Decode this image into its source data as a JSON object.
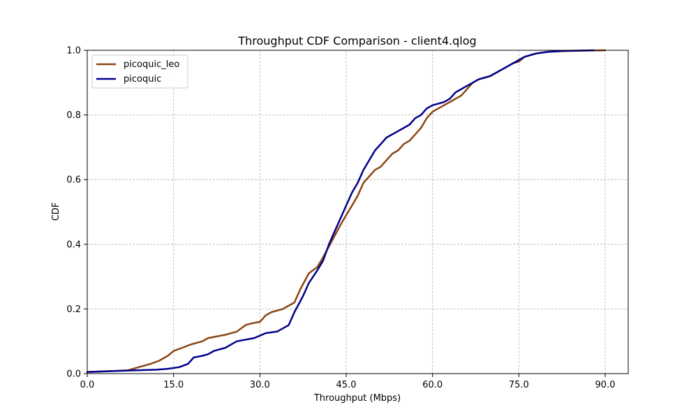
{
  "chart_data": {
    "type": "line",
    "title": "Throughput CDF Comparison - client4.qlog",
    "xlabel": "Throughput (Mbps)",
    "ylabel": "CDF",
    "xlim": [
      0,
      94
    ],
    "ylim": [
      0,
      1.0
    ],
    "xticks": [
      0,
      15,
      30,
      45,
      60,
      75,
      90
    ],
    "xtick_labels": [
      "0.0",
      "15.0",
      "30.0",
      "45.0",
      "60.0",
      "75.0",
      "90.0"
    ],
    "yticks": [
      0,
      0.2,
      0.4,
      0.6,
      0.8,
      1.0
    ],
    "ytick_labels": [
      "0.0",
      "0.2",
      "0.4",
      "0.6",
      "0.8",
      "1.0"
    ],
    "grid": true,
    "legend_position": "top-left",
    "series": [
      {
        "name": "picoquic_leo",
        "color": "#8b4513",
        "x": [
          0,
          7,
          9,
          11,
          12.5,
          14,
          15,
          16.5,
          18,
          20,
          21,
          24,
          26,
          27.5,
          28.5,
          30,
          31,
          32,
          34,
          36,
          37,
          38.5,
          40,
          41,
          42.5,
          44,
          45,
          46,
          47,
          48,
          49,
          50,
          51,
          52,
          53,
          54,
          55,
          56,
          57,
          58,
          59,
          60,
          61,
          62,
          63,
          64,
          65,
          66,
          67,
          68,
          70,
          71,
          72,
          73,
          74,
          75,
          76,
          78,
          80,
          82,
          86,
          90
        ],
        "y": [
          0.005,
          0.01,
          0.02,
          0.03,
          0.04,
          0.055,
          0.07,
          0.08,
          0.09,
          0.1,
          0.11,
          0.12,
          0.13,
          0.15,
          0.155,
          0.16,
          0.18,
          0.19,
          0.2,
          0.22,
          0.26,
          0.31,
          0.33,
          0.36,
          0.41,
          0.46,
          0.49,
          0.52,
          0.55,
          0.59,
          0.61,
          0.63,
          0.64,
          0.66,
          0.68,
          0.69,
          0.71,
          0.72,
          0.74,
          0.76,
          0.79,
          0.81,
          0.82,
          0.83,
          0.84,
          0.85,
          0.86,
          0.88,
          0.9,
          0.91,
          0.92,
          0.93,
          0.94,
          0.95,
          0.96,
          0.965,
          0.98,
          0.99,
          0.995,
          0.997,
          0.999,
          1.0
        ]
      },
      {
        "name": "picoquic",
        "color": "#00008b",
        "x": [
          0,
          8,
          12,
          14,
          16,
          17.5,
          18.5,
          20,
          21,
          22,
          24,
          25,
          26,
          29,
          31,
          33,
          34,
          35,
          36,
          37.5,
          38.5,
          40,
          41,
          42,
          43,
          44,
          45,
          46,
          47,
          48,
          49,
          50,
          51,
          52,
          53,
          54,
          55,
          56,
          57,
          58,
          59,
          60,
          61,
          62,
          63,
          64,
          65,
          66,
          67,
          68,
          70,
          71,
          72,
          73,
          74,
          75,
          76,
          78,
          80,
          83,
          88
        ],
        "y": [
          0.005,
          0.01,
          0.012,
          0.015,
          0.02,
          0.03,
          0.05,
          0.055,
          0.06,
          0.07,
          0.08,
          0.09,
          0.1,
          0.11,
          0.125,
          0.13,
          0.14,
          0.15,
          0.19,
          0.24,
          0.28,
          0.32,
          0.35,
          0.4,
          0.44,
          0.48,
          0.52,
          0.56,
          0.59,
          0.63,
          0.66,
          0.69,
          0.71,
          0.73,
          0.74,
          0.75,
          0.76,
          0.77,
          0.79,
          0.8,
          0.82,
          0.83,
          0.835,
          0.84,
          0.85,
          0.87,
          0.88,
          0.89,
          0.9,
          0.91,
          0.92,
          0.93,
          0.94,
          0.95,
          0.96,
          0.97,
          0.98,
          0.99,
          0.995,
          0.998,
          1.0
        ]
      }
    ]
  }
}
